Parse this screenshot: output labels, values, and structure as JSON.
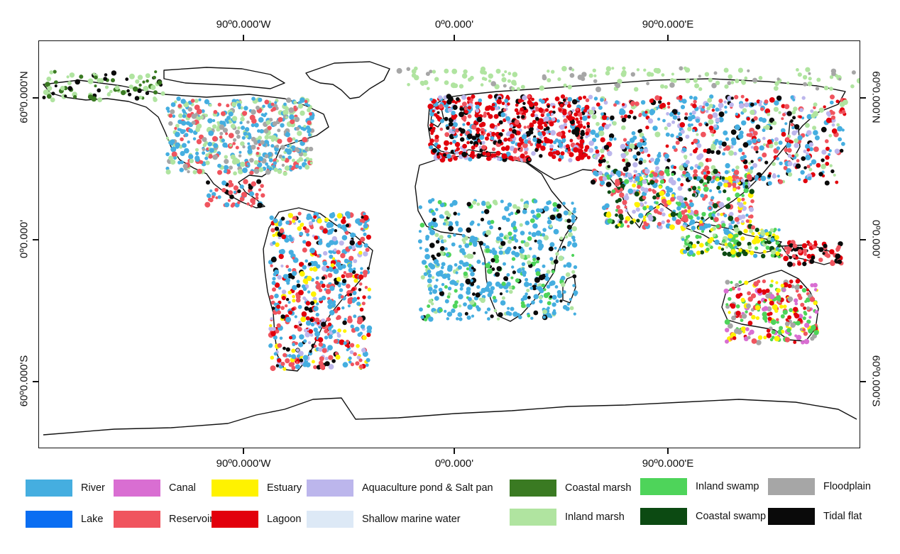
{
  "map": {
    "axis_labels": {
      "top": [
        "90º0.000'W",
        "0º0.000'",
        "90º0.000'E"
      ],
      "bottom": [
        "90º0.000'W",
        "0º0.000'",
        "90º0.000'E"
      ],
      "left": [
        "60º0.000'N",
        "0º0.000'",
        "60º0.000'S"
      ],
      "right": [
        "60º0.000'N",
        "0º0.000'",
        "60º0.000'S"
      ]
    },
    "legend": [
      {
        "label": "River",
        "color": "#45aee0"
      },
      {
        "label": "Canal",
        "color": "#d96ed2"
      },
      {
        "label": "Estuary",
        "color": "#fff200"
      },
      {
        "label": "Aquaculture pond & Salt pan",
        "color": "#bcb6ec"
      },
      {
        "label": "Coastal marsh",
        "color": "#3a7a22"
      },
      {
        "label": "Inland swamp",
        "color": "#4ed45a"
      },
      {
        "label": "Floodplain",
        "color": "#a6a6a6"
      },
      {
        "label": "Lake",
        "color": "#0a6ef2"
      },
      {
        "label": "Reservoir",
        "color": "#f0545e"
      },
      {
        "label": "Lagoon",
        "color": "#e2000c"
      },
      {
        "label": "Shallow marine water",
        "color": "#dde9f6"
      },
      {
        "label": "Inland marsh",
        "color": "#b0e4a0"
      },
      {
        "label": "Coastal swamp",
        "color": "#0c4a12"
      },
      {
        "label": "Tidal flat",
        "color": "#0a0a0a"
      }
    ]
  }
}
